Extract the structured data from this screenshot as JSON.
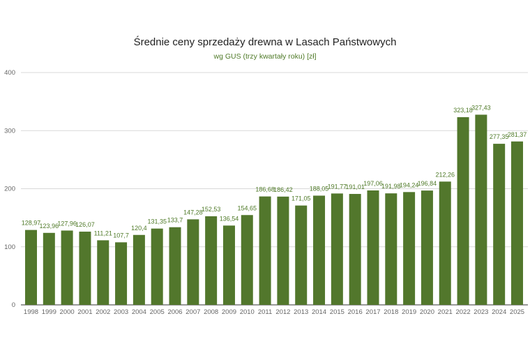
{
  "chart_data": {
    "type": "bar",
    "title": "Średnie ceny sprzedaży drewna w Lasach Państwowych",
    "subtitle": "wg GUS (trzy kwartały roku) [zł]",
    "xlabel": "",
    "ylabel": "",
    "ylim": [
      0,
      400
    ],
    "yticks": [
      "0",
      "100",
      "200",
      "300",
      "400"
    ],
    "ytick_values": [
      0,
      100,
      200,
      300,
      400
    ],
    "grid": true,
    "legend": "none",
    "bar_color": "#52772c",
    "label_color": "#4f7a28",
    "categories": [
      "1998",
      "1999",
      "2000",
      "2001",
      "2002",
      "2003",
      "2004",
      "2005",
      "2006",
      "2007",
      "2008",
      "2009",
      "2010",
      "2011",
      "2012",
      "2013",
      "2014",
      "2015",
      "2016",
      "2017",
      "2018",
      "2019",
      "2020",
      "2021",
      "2022",
      "2023",
      "2024",
      "2025"
    ],
    "values": [
      128.97,
      123.96,
      127.96,
      126.07,
      111.21,
      107.7,
      120.4,
      131.35,
      133.7,
      147.28,
      152.53,
      136.54,
      154.65,
      186.68,
      186.42,
      171.05,
      188.05,
      191.77,
      191.01,
      197.06,
      191.98,
      194.24,
      196.84,
      212.26,
      323.18,
      327.43,
      277.35,
      281.37
    ],
    "data_labels": [
      "128,97",
      "123,96",
      "127,96",
      "126,07",
      "111,21",
      "107,7",
      "120,4",
      "131,35",
      "133,7",
      "147,28",
      "152,53",
      "136,54",
      "154,65",
      "186,68",
      "186,42",
      "171,05",
      "188,05",
      "191,77",
      "191,01",
      "197,06",
      "191,98",
      "194,24",
      "196,84",
      "212,26",
      "323,18",
      "327,43",
      "277,35",
      "281,37"
    ]
  }
}
